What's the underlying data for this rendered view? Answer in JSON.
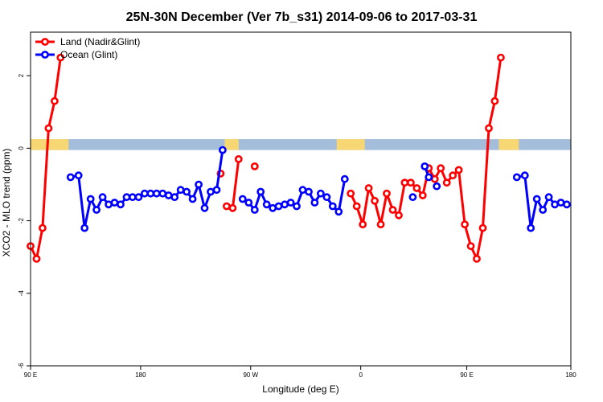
{
  "chart_data": {
    "type": "line",
    "title": "25N-30N December (Ver 7b_s31)   2014-09-06 to 2017-03-31",
    "xlabel": "Longitude (deg E)",
    "ylabel": "XCO2 - MLO trend (ppm)",
    "xlim": [
      90,
      360
    ],
    "ylim": [
      -6,
      3.2
    ],
    "x_ticks": [
      {
        "value": 90,
        "label": "90 E"
      },
      {
        "value": 145,
        "label": "180"
      },
      {
        "value": 200,
        "label": "90 W"
      },
      {
        "value": 255,
        "label": "0"
      },
      {
        "value": 308,
        "label": "90 E"
      },
      {
        "value": 360,
        "label": "180"
      }
    ],
    "y_ticks": [
      {
        "value": 2,
        "label": "2"
      },
      {
        "value": 0,
        "label": "0"
      },
      {
        "value": -2,
        "label": "-2"
      },
      {
        "value": -4,
        "label": "-4"
      },
      {
        "value": -6,
        "label": "-6"
      }
    ],
    "legend": {
      "position": "top-left"
    },
    "colors": {
      "land": "#ff0000",
      "ocean": "#0000ff",
      "land_band": "#f7d774",
      "ocean_band": "#a4bddb"
    },
    "band": {
      "y_range": [
        -0.05,
        0.25
      ]
    },
    "land_segments": [
      [
        90,
        109
      ],
      [
        187,
        194
      ],
      [
        243,
        257
      ],
      [
        324,
        334
      ]
    ],
    "series": [
      {
        "name": "Land (Nadir&Glint)",
        "color": "#ff0000",
        "segments": [
          [
            [
              90,
              -2.7
            ],
            [
              93,
              -3.05
            ],
            [
              96,
              -2.2
            ],
            [
              99,
              0.55
            ],
            [
              102,
              1.3
            ],
            [
              105,
              2.5
            ]
          ],
          [
            [
              185,
              -0.7
            ]
          ],
          [
            [
              188,
              -1.6
            ],
            [
              191,
              -1.65
            ],
            [
              194,
              -0.3
            ]
          ],
          [
            [
              202,
              -0.5
            ]
          ],
          [
            [
              250,
              -1.25
            ],
            [
              253,
              -1.6
            ],
            [
              256,
              -2.1
            ],
            [
              259,
              -1.1
            ],
            [
              262,
              -1.45
            ],
            [
              265,
              -2.1
            ],
            [
              268,
              -1.25
            ],
            [
              271,
              -1.7
            ],
            [
              274,
              -1.85
            ],
            [
              277,
              -0.95
            ],
            [
              280,
              -0.95
            ],
            [
              283,
              -1.1
            ],
            [
              286,
              -1.3
            ],
            [
              289,
              -0.55
            ],
            [
              292,
              -0.85
            ],
            [
              295,
              -0.55
            ],
            [
              298,
              -0.95
            ],
            [
              301,
              -0.75
            ],
            [
              304,
              -0.6
            ],
            [
              307,
              -2.1
            ],
            [
              310,
              -2.7
            ],
            [
              313,
              -3.05
            ],
            [
              316,
              -2.2
            ],
            [
              319,
              0.55
            ],
            [
              322,
              1.3
            ],
            [
              325,
              2.5
            ]
          ]
        ]
      },
      {
        "name": "Ocean (Glint)",
        "color": "#0000ff",
        "segments": [
          [
            [
              110,
              -0.8
            ],
            [
              114,
              -0.75
            ],
            [
              117,
              -2.2
            ],
            [
              120,
              -1.4
            ],
            [
              123,
              -1.7
            ],
            [
              126,
              -1.35
            ],
            [
              129,
              -1.55
            ],
            [
              132,
              -1.5
            ],
            [
              135,
              -1.55
            ],
            [
              138,
              -1.35
            ],
            [
              141,
              -1.35
            ],
            [
              144,
              -1.35
            ],
            [
              147,
              -1.25
            ],
            [
              150,
              -1.25
            ],
            [
              153,
              -1.25
            ],
            [
              156,
              -1.25
            ],
            [
              159,
              -1.3
            ],
            [
              162,
              -1.35
            ],
            [
              165,
              -1.15
            ],
            [
              168,
              -1.2
            ],
            [
              171,
              -1.4
            ],
            [
              174,
              -1.0
            ],
            [
              177,
              -1.65
            ],
            [
              180,
              -1.2
            ],
            [
              183,
              -1.15
            ],
            [
              186,
              -0.05
            ]
          ],
          [
            [
              196,
              -1.4
            ],
            [
              199,
              -1.5
            ],
            [
              202,
              -1.7
            ],
            [
              205,
              -1.2
            ],
            [
              208,
              -1.55
            ],
            [
              211,
              -1.65
            ],
            [
              214,
              -1.6
            ],
            [
              217,
              -1.55
            ],
            [
              220,
              -1.5
            ],
            [
              223,
              -1.6
            ],
            [
              226,
              -1.15
            ],
            [
              229,
              -1.2
            ],
            [
              232,
              -1.5
            ],
            [
              235,
              -1.25
            ],
            [
              238,
              -1.35
            ],
            [
              241,
              -1.6
            ],
            [
              244,
              -1.75
            ],
            [
              247,
              -0.85
            ]
          ],
          [
            [
              281,
              -1.35
            ]
          ],
          [
            [
              287,
              -0.5
            ],
            [
              289,
              -0.8
            ]
          ],
          [
            [
              293,
              -1.05
            ]
          ],
          [
            [
              333,
              -0.8
            ],
            [
              337,
              -0.75
            ],
            [
              340,
              -2.2
            ],
            [
              343,
              -1.4
            ],
            [
              346,
              -1.7
            ],
            [
              349,
              -1.35
            ],
            [
              352,
              -1.55
            ],
            [
              355,
              -1.5
            ],
            [
              358,
              -1.55
            ],
            [
              361,
              -1.35
            ],
            [
              364,
              -1.35
            ],
            [
              367,
              -1.35
            ]
          ]
        ]
      }
    ]
  }
}
